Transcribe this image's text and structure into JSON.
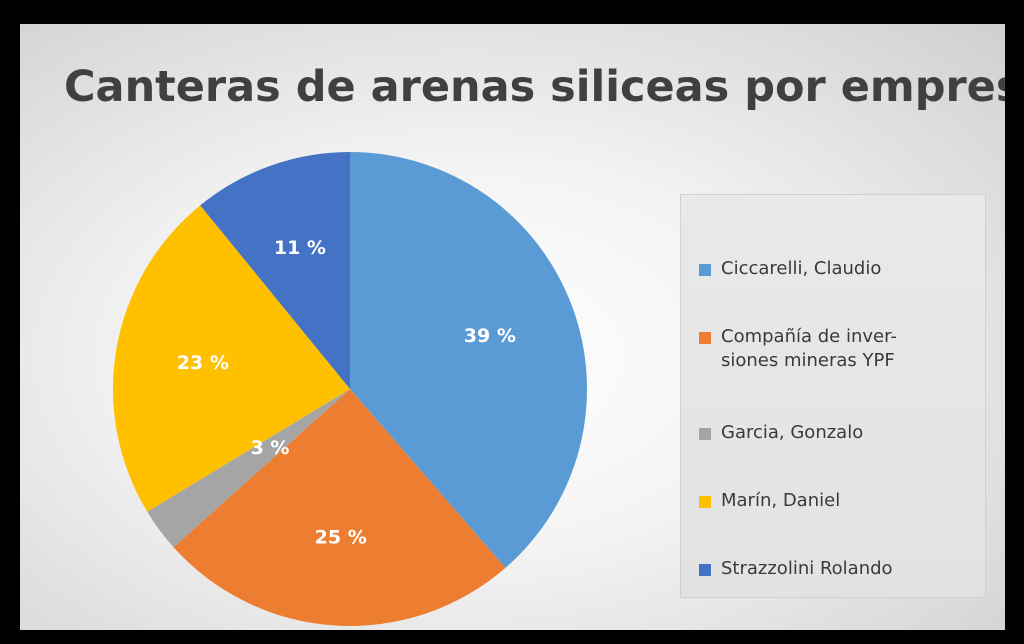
{
  "chart_data": {
    "type": "pie",
    "title": "Canteras de arenas siliceas por empresa",
    "slices": [
      {
        "name": "Ciccarelli, Claudio",
        "value": 39,
        "label": "39 %",
        "color": "#5b9bd5"
      },
      {
        "name": "Compañía de inver-\nsiones mineras YPF",
        "value": 25,
        "label": "25 %",
        "color": "#ed7d31"
      },
      {
        "name": "Garcia, Gonzalo",
        "value": 3,
        "label": "3 %",
        "color": "#a5a5a5"
      },
      {
        "name": "Marín, Daniel",
        "value": 23,
        "label": "23 %",
        "color": "#ffc000"
      },
      {
        "name": "Strazzolini Rolando",
        "value": 11,
        "label": "11 %",
        "color": "#4472c4"
      }
    ],
    "legend_position": "right"
  }
}
